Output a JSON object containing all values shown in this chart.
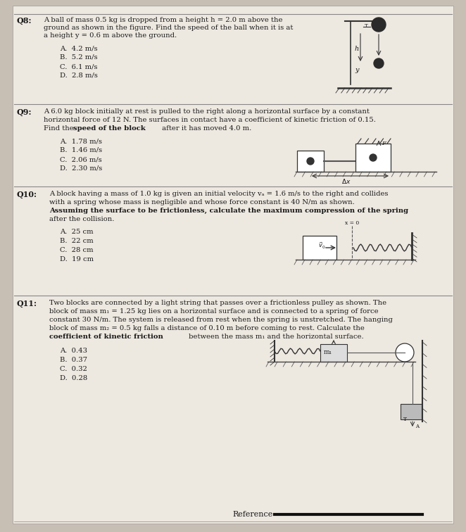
{
  "bg_color": "#c8bfb4",
  "paper_color": "#ede8e0",
  "text_color": "#1a1a1a",
  "figsize": [
    6.62,
    7.56
  ],
  "dpi": 100,
  "q8": {
    "label": "Q8:",
    "line1": "A ball of mass 0.5 kg is dropped from a height h = 2.0 m above the",
    "line2": "ground as shown in the figure. Find the speed of the ball when it is at",
    "line3": "a height y = 0.6 m above the ground.",
    "bold_start": "Find the speed of the ball",
    "choices": [
      "A.  4.2 m/s",
      "B.  5.2 m/s",
      "C.  6.1 m/s",
      "D.  2.8 m/s"
    ]
  },
  "q9": {
    "label": "Q9:",
    "line1": "A 6.0 kg block initially at rest is pulled to the right along a horizontal surface by a constant",
    "line2": "horizontal force of 12 N. The surfaces in contact have a coefficient of kinetic friction of 0.15.",
    "line3": "Find the speed of the block after it has moved 4.0 m.",
    "choices": [
      "A.  1.78 m/s",
      "B.  1.46 m/s",
      "C.  2.06 m/s",
      "D.  2.30 m/s"
    ]
  },
  "q10": {
    "label": "Q10:",
    "line1": "A block having a mass of 1.0 kg is given an initial velocity vₐ = 1.6 m/s to the right and collides",
    "line2": "with a spring whose mass is negligible and whose force constant is 40 N/m as shown.",
    "line3": "Assuming the surface to be frictionless, calculate the maximum compression of the spring",
    "line4": "after the collision.",
    "choices": [
      "A.  25 cm",
      "B.  22 cm",
      "C.  28 cm",
      "D.  19 cm"
    ]
  },
  "q11": {
    "label": "Q11:",
    "line1": "Two blocks are connected by a light string that passes over a frictionless pulley as shown. The",
    "line2": "block of mass m₁ = 1.25 kg lies on a horizontal surface and is connected to a spring of force",
    "line3": "constant 30 N/m. The system is released from rest when the spring is unstretched. The hanging",
    "line4": "block of mass m₂ = 0.5 kg falls a distance of 0.10 m before coming to rest. Calculate the",
    "line5_normal": "coefficient of kinetic friction",
    "line5_bold": "coefficient of kinetic friction",
    "line5_end": " between the mass m₁ and the horizontal surface.",
    "choices": [
      "A.  0.43",
      "B.  0.37",
      "C.  0.32",
      "D.  0.28"
    ]
  },
  "reference": "Reference"
}
